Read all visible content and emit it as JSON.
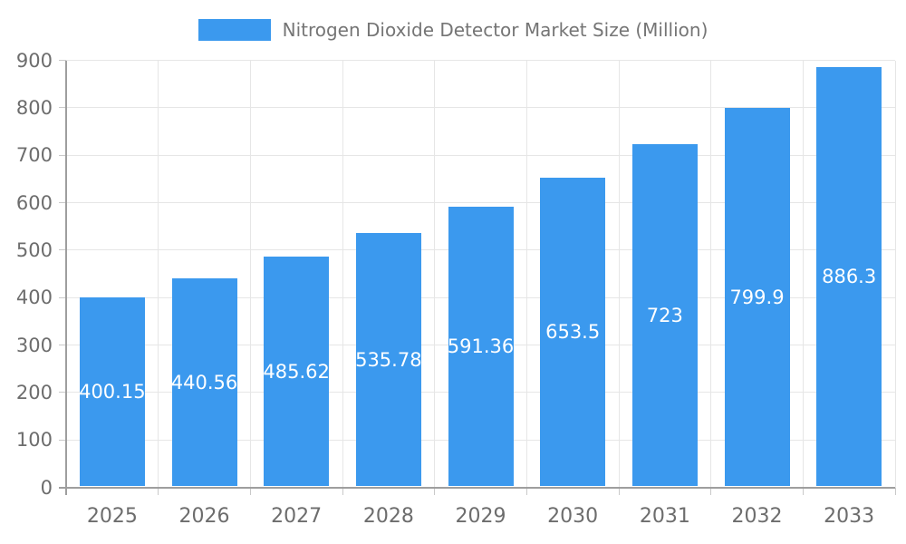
{
  "legend": {
    "label": "Nitrogen Dioxide Detector Market Size (Million)"
  },
  "chart_data": {
    "type": "bar",
    "title": "Nitrogen Dioxide Detector Market Size (Million)",
    "categories": [
      "2025",
      "2026",
      "2027",
      "2028",
      "2029",
      "2030",
      "2031",
      "2032",
      "2033"
    ],
    "values": [
      400.15,
      440.56,
      485.62,
      535.78,
      591.36,
      653.5,
      723,
      799.9,
      886.3
    ],
    "value_labels": [
      "400.15",
      "440.56",
      "485.62",
      "535.78",
      "591.36",
      "653.5",
      "723",
      "799.9",
      "886.3"
    ],
    "series_name": "Nitrogen Dioxide Detector Market Size (Million)",
    "xlabel": "",
    "ylabel": "",
    "ylim": [
      0,
      900
    ],
    "y_tick_step": 100,
    "y_tick_labels": [
      "0",
      "100",
      "200",
      "300",
      "400",
      "500",
      "600",
      "700",
      "800",
      "900"
    ],
    "grid": true,
    "legend_position": "top",
    "value_label_position": "inside-center",
    "colors": {
      "bar": "#3b99ee",
      "value_label": "#ffffff",
      "axis_text": "#6d6d6d",
      "legend_text": "#757575",
      "gridline": "#e6e6e6",
      "axis_line": "#9e9e9e",
      "tick": "#c9c9c9",
      "background": "#ffffff"
    }
  }
}
